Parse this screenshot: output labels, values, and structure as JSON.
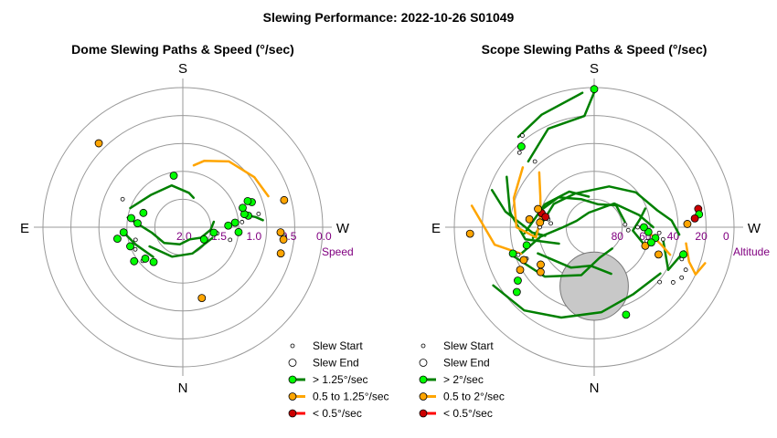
{
  "title": "Slewing Performance: 2022-10-26 S01049",
  "colors": {
    "fast": "#008000",
    "fast_marker": "#00ff00",
    "medium": "#ffa500",
    "medium_marker": "#ffa500",
    "slow": "#ff0000",
    "slow_marker": "#cc0000",
    "grid": "#999999",
    "ring_label": "#800080",
    "obscured": "#c8c8c8"
  },
  "chart_data": [
    {
      "type": "polar-scatter",
      "title": "Dome Slewing Paths & Speed (°/sec)",
      "compass": {
        "top": "S",
        "bottom": "N",
        "left": "E",
        "right": "W"
      },
      "radial_label": "Speed",
      "radial_scale": "2.0 at center, 0.0 at outer ring",
      "ring_values": [
        2.0,
        1.5,
        1.0,
        0.5,
        0.0
      ],
      "ring_labels": [
        "2.0",
        "1.5",
        "1.0",
        "0.5",
        "0.0"
      ],
      "legend": [
        "Slew Start",
        "Slew End",
        "> 1.25°/sec",
        "0.5 to 1.25°/sec",
        "< 0.5°/sec"
      ],
      "paths": [
        {
          "speed": "fast",
          "points": [
            [
              -70,
              1.2
            ],
            [
              -45,
              1.35
            ],
            [
              -15,
              1.38
            ],
            [
              10,
              1.5
            ],
            [
              20,
              1.55
            ]
          ]
        },
        {
          "speed": "fast",
          "points": [
            [
              -95,
              1.15
            ],
            [
              -110,
              1.28
            ],
            [
              -135,
              1.4
            ]
          ]
        },
        {
          "speed": "fast",
          "points": [
            [
              -80,
              1.2
            ],
            [
              -100,
              1.55
            ],
            [
              -130,
              1.65
            ],
            [
              -170,
              1.75
            ],
            [
              150,
              1.8
            ],
            [
              120,
              1.7
            ],
            [
              95,
              1.6
            ],
            [
              80,
              1.55
            ]
          ]
        },
        {
          "speed": "fast",
          "points": [
            [
              -120,
              1.45
            ],
            [
              -160,
              1.55
            ],
            [
              160,
              1.6
            ],
            [
              110,
              1.55
            ]
          ]
        },
        {
          "speed": "fast",
          "points": [
            [
              75,
              1.1
            ],
            [
              80,
              1.05
            ],
            [
              82,
              0.95
            ],
            [
              85,
              0.85
            ]
          ]
        },
        {
          "speed": "medium",
          "points": [
            [
              70,
              0.7
            ],
            [
              55,
              0.75
            ],
            [
              35,
              0.85
            ],
            [
              18,
              1.0
            ],
            [
              10,
              1.1
            ]
          ]
        }
      ],
      "starts": [
        {
          "az": -105,
          "speed": 1.3
        },
        {
          "az": -95,
          "speed": 1.15
        },
        {
          "az": -115,
          "speed": 1.25
        },
        {
          "az": -65,
          "speed": 1.05
        },
        {
          "az": 105,
          "speed": 1.3
        },
        {
          "az": 100,
          "speed": 1.5
        },
        {
          "az": 85,
          "speed": 1.15
        },
        {
          "az": 75,
          "speed": 1.1
        },
        {
          "az": 70,
          "speed": 0.95
        },
        {
          "az": 80,
          "speed": 0.9
        },
        {
          "az": -130,
          "speed": 1.25
        },
        {
          "az": 95,
          "speed": 0.55
        }
      ],
      "ends": [
        {
          "az": -45,
          "speed": 0.3,
          "speed_class": "medium"
        },
        {
          "az": -110,
          "speed": 1.2,
          "speed_class": "fast"
        },
        {
          "az": -80,
          "speed": 1.25,
          "speed_class": "fast"
        },
        {
          "az": -100,
          "speed": 1.05,
          "speed_class": "fast"
        },
        {
          "az": -95,
          "speed": 1.15,
          "speed_class": "fast"
        },
        {
          "az": -85,
          "speed": 1.35,
          "speed_class": "fast"
        },
        {
          "az": -70,
          "speed": 1.4,
          "speed_class": "fast"
        },
        {
          "az": -10,
          "speed": 1.25,
          "speed_class": "fast"
        },
        {
          "az": -130,
          "speed": 1.3,
          "speed_class": "fast"
        },
        {
          "az": -125,
          "speed": 1.15,
          "speed_class": "fast"
        },
        {
          "az": -140,
          "speed": 1.35,
          "speed_class": "fast"
        },
        {
          "az": 120,
          "speed": 1.65,
          "speed_class": "fast"
        },
        {
          "az": 100,
          "speed": 1.55,
          "speed_class": "fast"
        },
        {
          "az": 95,
          "speed": 1.2,
          "speed_class": "fast"
        },
        {
          "az": 85,
          "speed": 1.25,
          "speed_class": "fast"
        },
        {
          "az": 80,
          "speed": 1.05,
          "speed_class": "fast"
        },
        {
          "az": 78,
          "speed": 1.1,
          "speed_class": "fast"
        },
        {
          "az": 72,
          "speed": 1.1,
          "speed_class": "fast"
        },
        {
          "az": 88,
          "speed": 1.35,
          "speed_class": "fast"
        },
        {
          "az": 70,
          "speed": 0.95,
          "speed_class": "fast"
        },
        {
          "az": 68,
          "speed": 1.0,
          "speed_class": "fast"
        },
        {
          "az": 93,
          "speed": 0.6,
          "speed_class": "medium"
        },
        {
          "az": 97,
          "speed": 0.55,
          "speed_class": "medium"
        },
        {
          "az": 105,
          "speed": 0.55,
          "speed_class": "medium"
        },
        {
          "az": 75,
          "speed": 0.5,
          "speed_class": "medium"
        },
        {
          "az": 165,
          "speed": 0.95,
          "speed_class": "medium"
        }
      ]
    },
    {
      "type": "polar-scatter",
      "title": "Scope Slewing Paths & Speed (°/sec)",
      "compass": {
        "top": "S",
        "bottom": "N",
        "left": "E",
        "right": "W"
      },
      "radial_label": "Altitude",
      "radial_scale": "90 at center, 0 at outer ring",
      "ring_values": [
        90,
        80,
        60,
        40,
        20,
        0
      ],
      "ring_labels": [
        "80",
        "60",
        "40",
        "20",
        "0"
      ],
      "legend": [
        "Slew Start",
        "Slew End",
        "> 2°/sec",
        "0.5 to 2°/sec",
        "< 0.5°/sec"
      ],
      "obscured_region": {
        "az": 180,
        "alt": 52,
        "radius_deg": 22
      },
      "paths": [
        {
          "speed": "fast",
          "points": [
            [
              -110,
              35
            ],
            [
              -135,
              45
            ],
            [
              -165,
              58
            ],
            [
              170,
              70
            ],
            [
              140,
              72
            ]
          ]
        },
        {
          "speed": "fast",
          "points": [
            [
              -120,
              15
            ],
            [
              -140,
              20
            ],
            [
              -160,
              28
            ],
            [
              175,
              35
            ],
            [
              150,
              40
            ],
            [
              125,
              38
            ]
          ]
        },
        {
          "speed": "fast",
          "points": [
            [
              -45,
              30
            ],
            [
              -25,
              20
            ],
            [
              -5,
              18
            ],
            [
              0,
              3
            ]
          ]
        },
        {
          "speed": "fast",
          "points": [
            [
              -40,
              14
            ],
            [
              -25,
              10
            ],
            [
              -5,
              3
            ]
          ]
        },
        {
          "speed": "fast",
          "points": [
            [
              -60,
              25
            ],
            [
              -80,
              35
            ],
            [
              -100,
              45
            ],
            [
              -115,
              65
            ]
          ]
        },
        {
          "speed": "fast",
          "points": [
            [
              -70,
              20
            ],
            [
              -80,
              32
            ],
            [
              -95,
              50
            ],
            [
              -100,
              58
            ]
          ]
        },
        {
          "speed": "fast",
          "points": [
            [
              -110,
              40
            ],
            [
              -100,
              55
            ],
            [
              -90,
              70
            ],
            [
              -70,
              78
            ],
            [
              -20,
              80
            ],
            [
              40,
              70
            ],
            [
              75,
              60
            ],
            [
              90,
              52
            ]
          ]
        },
        {
          "speed": "fast",
          "points": [
            [
              100,
              45
            ],
            [
              120,
              35
            ],
            [
              105,
              30
            ]
          ]
        },
        {
          "speed": "fast",
          "points": [
            [
              -100,
              50
            ],
            [
              -60,
              60
            ],
            [
              -30,
              65
            ],
            [
              20,
              62
            ],
            [
              50,
              55
            ],
            [
              75,
              48
            ],
            [
              85,
              40
            ],
            [
              95,
              35
            ]
          ]
        },
        {
          "speed": "fast",
          "points": [
            [
              -95,
              45
            ],
            [
              -65,
              55
            ],
            [
              -35,
              62
            ],
            [
              -10,
              70
            ]
          ]
        },
        {
          "speed": "fast",
          "points": [
            [
              -70,
              55
            ],
            [
              -50,
              60
            ],
            [
              -25,
              70
            ],
            [
              10,
              75
            ],
            [
              45,
              70
            ],
            [
              80,
              70
            ]
          ]
        },
        {
          "speed": "fast",
          "points": [
            [
              110,
              55
            ],
            [
              95,
              65
            ],
            [
              80,
              60
            ],
            [
              70,
              55
            ]
          ]
        },
        {
          "speed": "fast",
          "points": [
            [
              -115,
              50
            ],
            [
              -150,
              60
            ],
            [
              -175,
              65
            ],
            [
              160,
              58
            ]
          ]
        },
        {
          "speed": "medium",
          "points": [
            [
              -50,
              30
            ],
            [
              -70,
              35
            ],
            [
              -90,
              40
            ],
            [
              -100,
              52
            ]
          ]
        },
        {
          "speed": "medium",
          "points": [
            [
              -80,
              10
            ],
            [
              -100,
              25
            ],
            [
              -110,
              40
            ]
          ]
        },
        {
          "speed": "medium",
          "points": [
            [
              -45,
              40
            ],
            [
              -60,
              50
            ],
            [
              -80,
              55
            ],
            [
              -100,
              52
            ]
          ]
        },
        {
          "speed": "medium",
          "points": [
            [
              100,
              30
            ],
            [
              110,
              25
            ],
            [
              115,
              18
            ],
            [
              108,
              15
            ]
          ]
        },
        {
          "speed": "medium",
          "points": [
            [
              95,
              55
            ],
            [
              105,
              45
            ],
            [
              110,
              38
            ]
          ]
        }
      ],
      "starts": [
        {
          "az": -42,
          "alt": 33
        },
        {
          "az": -38,
          "alt": 15
        },
        {
          "az": -45,
          "alt": 22
        },
        {
          "az": -80,
          "alt": 60
        },
        {
          "az": -85,
          "alt": 62
        },
        {
          "az": -90,
          "alt": 55
        },
        {
          "az": 100,
          "alt": 45
        },
        {
          "az": 95,
          "alt": 48
        },
        {
          "az": 110,
          "alt": 30
        },
        {
          "az": 115,
          "alt": 25
        },
        {
          "az": 120,
          "alt": 25
        },
        {
          "az": 125,
          "alt": 28
        },
        {
          "az": 130,
          "alt": 35
        },
        {
          "az": 105,
          "alt": 55
        },
        {
          "az": 90,
          "alt": 62
        },
        {
          "az": -110,
          "alt": 38
        },
        {
          "az": -115,
          "alt": 42
        },
        {
          "az": 85,
          "alt": 70
        },
        {
          "az": 95,
          "alt": 68
        }
      ],
      "ends": [
        {
          "az": 0,
          "alt": 1,
          "speed_class": "fast"
        },
        {
          "az": -42,
          "alt": 20,
          "speed_class": "fast"
        },
        {
          "az": -93,
          "alt": 10,
          "speed_class": "medium"
        },
        {
          "az": -85,
          "alt": 55,
          "speed_class": "medium"
        },
        {
          "az": -83,
          "alt": 48,
          "speed_class": "medium"
        },
        {
          "az": -75,
          "alt": 55,
          "speed_class": "slow"
        },
        {
          "az": -78,
          "alt": 58,
          "speed_class": "slow"
        },
        {
          "az": -72,
          "alt": 52,
          "speed_class": "medium"
        },
        {
          "az": -105,
          "alt": 45,
          "speed_class": "fast"
        },
        {
          "az": -108,
          "alt": 35,
          "speed_class": "fast"
        },
        {
          "az": -115,
          "alt": 40,
          "speed_class": "medium"
        },
        {
          "az": -120,
          "alt": 35,
          "speed_class": "medium"
        },
        {
          "az": -125,
          "alt": 30,
          "speed_class": "fast"
        },
        {
          "az": -130,
          "alt": 25,
          "speed_class": "fast"
        },
        {
          "az": 160,
          "alt": 30,
          "speed_class": "fast"
        },
        {
          "az": 80,
          "alt": 22,
          "speed_class": "slow"
        },
        {
          "az": 83,
          "alt": 22,
          "speed_class": "fast"
        },
        {
          "az": 85,
          "alt": 25,
          "speed_class": "slow"
        },
        {
          "az": 88,
          "alt": 30,
          "speed_class": "medium"
        },
        {
          "az": 107,
          "alt": 30,
          "speed_class": "fast"
        },
        {
          "az": 110,
          "alt": 55,
          "speed_class": "medium"
        },
        {
          "az": 95,
          "alt": 55,
          "speed_class": "fast"
        },
        {
          "az": 90,
          "alt": 58,
          "speed_class": "fast"
        },
        {
          "az": 100,
          "alt": 50,
          "speed_class": "fast"
        },
        {
          "az": 105,
          "alt": 52,
          "speed_class": "fast"
        },
        {
          "az": -130,
          "alt": 45,
          "speed_class": "medium"
        },
        {
          "az": -125,
          "alt": 48,
          "speed_class": "medium"
        },
        {
          "az": 113,
          "alt": 45,
          "speed_class": "medium"
        }
      ]
    }
  ]
}
